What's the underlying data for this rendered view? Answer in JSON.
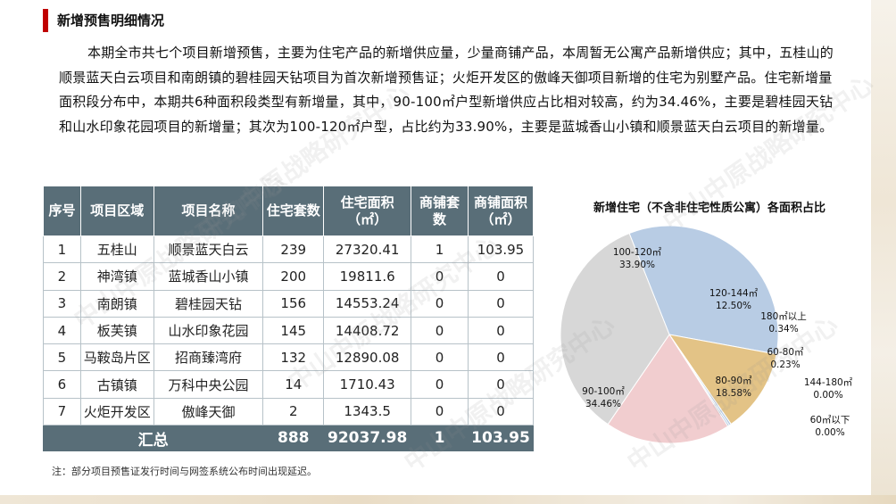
{
  "header": {
    "title": "新增预售明细情况"
  },
  "paragraph": "本期全市共七个项目新增预售，主要为住宅产品的新增供应量，少量商铺产品，本周暂无公寓产品新增供应；其中，五桂山的顺景蓝天白云项目和南朗镇的碧桂园天钻项目为首次新增预售证；火炬开发区的傲峰天御项目新增的住宅为别墅产品。住宅新增量面积段分布中，本期共6种面积段类型有新增量，其中，90-100㎡户型新增供应占比相对较高，约为34.46%，主要是碧桂园天钻和山水印象花园项目的新增量；其次为100-120㎡户型，占比约为33.90%，主要是蓝城香山小镇和顺景蓝天白云项目的新增量。",
  "table": {
    "headers": [
      "序号",
      "项目区域",
      "项目名称",
      "住宅套数",
      "住宅面积（㎡）",
      "商铺套数",
      "商铺面积（㎡）"
    ],
    "rows": [
      [
        "1",
        "五桂山",
        "顺景蓝天白云",
        "239",
        "27320.41",
        "1",
        "103.95"
      ],
      [
        "2",
        "神湾镇",
        "蓝城香山小镇",
        "200",
        "19811.6",
        "0",
        "0"
      ],
      [
        "3",
        "南朗镇",
        "碧桂园天钻",
        "156",
        "14553.24",
        "0",
        "0"
      ],
      [
        "4",
        "板芙镇",
        "山水印象花园",
        "145",
        "14408.72",
        "0",
        "0"
      ],
      [
        "5",
        "马鞍岛片区",
        "招商臻湾府",
        "132",
        "12890.08",
        "0",
        "0"
      ],
      [
        "6",
        "古镇镇",
        "万科中央公园",
        "14",
        "1710.43",
        "0",
        "0"
      ],
      [
        "7",
        "火炬开发区",
        "傲峰天御",
        "2",
        "1343.5",
        "0",
        "0"
      ]
    ],
    "total": {
      "label": "汇总",
      "res_units": "888",
      "res_area": "92037.98",
      "shop_units": "1",
      "shop_area": "103.95"
    }
  },
  "note": "注：部分项目预售证发行时间与网签系统公布时间出现延迟。",
  "watermark": "中山中原战略研究中心",
  "chart_data": {
    "type": "pie",
    "title": "新增住宅（不含非住宅性质公寓）各面积占比",
    "slices": [
      {
        "label": "100-120㎡",
        "value": 33.9,
        "display": "33.90%",
        "color": "#b8cce4"
      },
      {
        "label": "120-144㎡",
        "value": 12.5,
        "display": "12.50%",
        "color": "#e3c386"
      },
      {
        "label": "180㎡以上",
        "value": 0.34,
        "display": "0.34%",
        "color": "#b8cce4"
      },
      {
        "label": "60-80㎡",
        "value": 0.23,
        "display": "0.23%",
        "color": "#9cb7d4"
      },
      {
        "label": "144-180㎡",
        "value": 0.0,
        "display": "0.00%",
        "color": "#c0c0c0"
      },
      {
        "label": "80-90㎡",
        "value": 18.58,
        "display": "18.58%",
        "color": "#f1cdcf"
      },
      {
        "label": "60㎡以下",
        "value": 0.0,
        "display": "0.00%",
        "color": "#d9d9d9"
      },
      {
        "label": "90-100㎡",
        "value": 34.46,
        "display": "34.46%",
        "color": "#d7d7d7"
      }
    ]
  }
}
